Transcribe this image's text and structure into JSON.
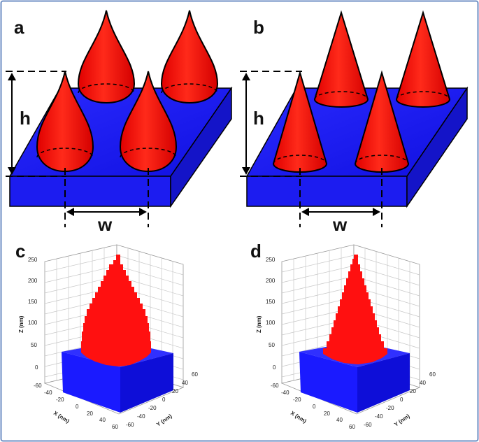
{
  "panels": {
    "a": {
      "label": "a",
      "h_label": "h",
      "w_label": "w",
      "shape": "teardrop"
    },
    "b": {
      "label": "b",
      "h_label": "h",
      "w_label": "w",
      "shape": "cone"
    },
    "c": {
      "label": "c",
      "shape": "teardrop"
    },
    "d": {
      "label": "d",
      "shape": "cone"
    }
  },
  "plots": {
    "z_label": "Z (nm)",
    "x_label": "X (nm)",
    "y_label": "Y (nm)",
    "z_ticks": [
      "0",
      "50",
      "100",
      "150",
      "200",
      "250"
    ],
    "x_ticks": [
      "-60",
      "-40",
      "-20",
      "0",
      "20",
      "40",
      "60"
    ],
    "y_ticks": [
      "-60",
      "-40",
      "-20",
      "0",
      "20",
      "40",
      "60"
    ]
  },
  "colors": {
    "substrate": "#1a1aff",
    "cone": "#ff1010",
    "frame": "#6f8fc4"
  }
}
